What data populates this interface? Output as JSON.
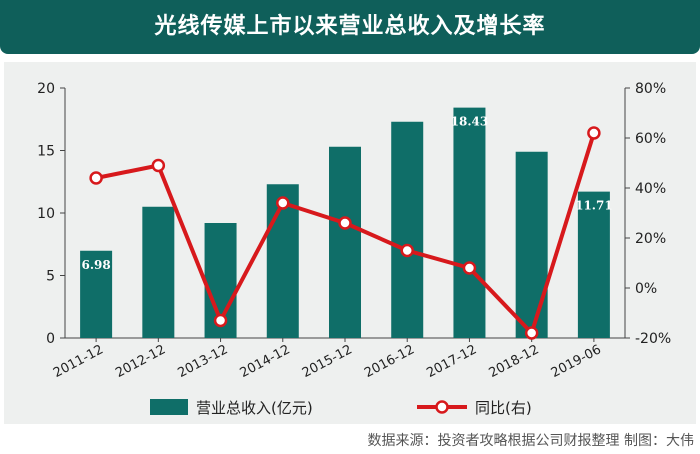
{
  "chart_data": {
    "type": "bar+line",
    "title": "光线传媒上市以来营业总收入及增长率",
    "categories": [
      "2011-12",
      "2012-12",
      "2013-12",
      "2014-12",
      "2015-12",
      "2016-12",
      "2017-12",
      "2018-12",
      "2019-06"
    ],
    "series": [
      {
        "name": "营业总收入(亿元)",
        "type": "bar",
        "axis": "left",
        "color": "#0f6e68",
        "values": [
          6.98,
          10.5,
          9.2,
          12.3,
          15.3,
          17.3,
          18.43,
          14.9,
          11.71
        ]
      },
      {
        "name": "同比(右)",
        "type": "line",
        "axis": "right",
        "color": "#d7191c",
        "values": [
          44,
          49,
          -13,
          34,
          26,
          15,
          8,
          -18,
          62
        ]
      }
    ],
    "data_labels": {
      "0": "6.98",
      "6": "18.43",
      "8": "11.71"
    },
    "left_axis": {
      "ylim": [
        0,
        20
      ],
      "ticks": [
        "0",
        "5",
        "10",
        "15",
        "20"
      ]
    },
    "right_axis": {
      "ylim": [
        -20,
        80
      ],
      "ticks": [
        "-20%",
        "0%",
        "20%",
        "40%",
        "60%",
        "80%"
      ]
    },
    "grid": false,
    "legend_position": "bottom"
  },
  "source_text": "数据来源：投资者攻略根据公司财报整理    制图：大伟"
}
